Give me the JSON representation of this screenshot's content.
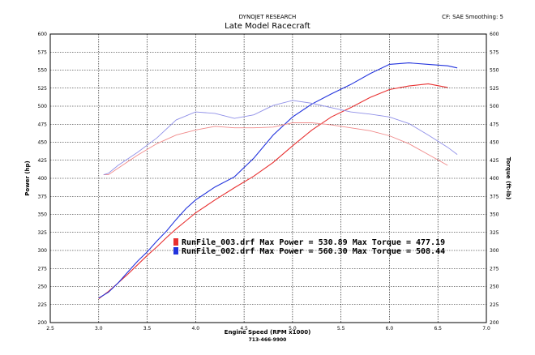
{
  "header": {
    "company": "DYNOJET RESEARCH",
    "title": "Late Model Racecraft",
    "cf_text": "CF: SAE  Smoothing: 5"
  },
  "footer": {
    "phone": "713-466-9900"
  },
  "colors": {
    "run1": "#e83030",
    "run2": "#2233dd",
    "run1_torque": "#f08a8a",
    "run2_torque": "#9090e8",
    "grid": "#000000"
  },
  "chart_data": {
    "type": "line",
    "xlabel": "Engine Speed (RPM x1000)",
    "ylabel_left": "Power (hp)",
    "ylabel_right": "Torque (ft-lb)",
    "xlim": [
      2.5,
      7.0
    ],
    "ylim": [
      200,
      600
    ],
    "x_ticks": [
      "2.5",
      "3.0",
      "3.5",
      "4.0",
      "4.5",
      "5.0",
      "5.5",
      "6.0",
      "6.5",
      "7.0"
    ],
    "y_ticks": [
      "200",
      "225",
      "250",
      "275",
      "300",
      "325",
      "350",
      "375",
      "400",
      "425",
      "450",
      "475",
      "500",
      "525",
      "550",
      "575",
      "600"
    ],
    "grid": true,
    "legend": [
      {
        "text": "RunFile_003.drf Max Power = 530.89     Max Torque = 477.19",
        "color": "#e83030"
      },
      {
        "text": "RunFile_002.drf Max Power = 560.30     Max Torque = 508.44",
        "color": "#2233dd"
      }
    ],
    "series": [
      {
        "run": "RunFile_003.drf",
        "measure": "Power",
        "x": [
          3.0,
          3.1,
          3.2,
          3.3,
          3.4,
          3.5,
          3.6,
          3.7,
          3.8,
          3.9,
          4.0,
          4.2,
          4.4,
          4.6,
          4.8,
          5.0,
          5.2,
          5.4,
          5.6,
          5.8,
          6.0,
          6.2,
          6.4,
          6.6
        ],
        "y": [
          233,
          243,
          255,
          267,
          280,
          293,
          305,
          318,
          330,
          341,
          352,
          370,
          387,
          403,
          422,
          445,
          467,
          485,
          498,
          512,
          523,
          528,
          531,
          526
        ]
      },
      {
        "run": "RunFile_002.drf",
        "measure": "Power",
        "x": [
          3.0,
          3.1,
          3.2,
          3.3,
          3.4,
          3.5,
          3.6,
          3.7,
          3.8,
          3.9,
          4.0,
          4.2,
          4.4,
          4.6,
          4.8,
          5.0,
          5.2,
          5.4,
          5.6,
          5.8,
          6.0,
          6.2,
          6.4,
          6.6,
          6.7
        ],
        "y": [
          234,
          242,
          255,
          270,
          285,
          298,
          313,
          327,
          343,
          358,
          370,
          388,
          402,
          428,
          460,
          485,
          503,
          517,
          530,
          545,
          558,
          560,
          558,
          556,
          553
        ]
      },
      {
        "run": "RunFile_003.drf",
        "measure": "Torque",
        "x": [
          3.05,
          3.1,
          3.2,
          3.4,
          3.6,
          3.8,
          4.0,
          4.2,
          4.4,
          4.6,
          4.8,
          5.0,
          5.2,
          5.4,
          5.6,
          5.8,
          6.0,
          6.2,
          6.4,
          6.6
        ],
        "y": [
          405,
          405,
          414,
          432,
          448,
          460,
          467,
          472,
          470,
          470,
          471,
          477,
          477,
          474,
          470,
          466,
          459,
          448,
          433,
          418
        ]
      },
      {
        "run": "RunFile_002.drf",
        "measure": "Torque",
        "x": [
          3.05,
          3.1,
          3.2,
          3.4,
          3.6,
          3.8,
          4.0,
          4.2,
          4.4,
          4.6,
          4.8,
          5.0,
          5.2,
          5.4,
          5.6,
          5.8,
          6.0,
          6.2,
          6.4,
          6.6,
          6.7
        ],
        "y": [
          405,
          407,
          418,
          436,
          456,
          481,
          492,
          490,
          483,
          488,
          501,
          508,
          504,
          498,
          492,
          489,
          485,
          476,
          460,
          443,
          433
        ]
      }
    ]
  }
}
